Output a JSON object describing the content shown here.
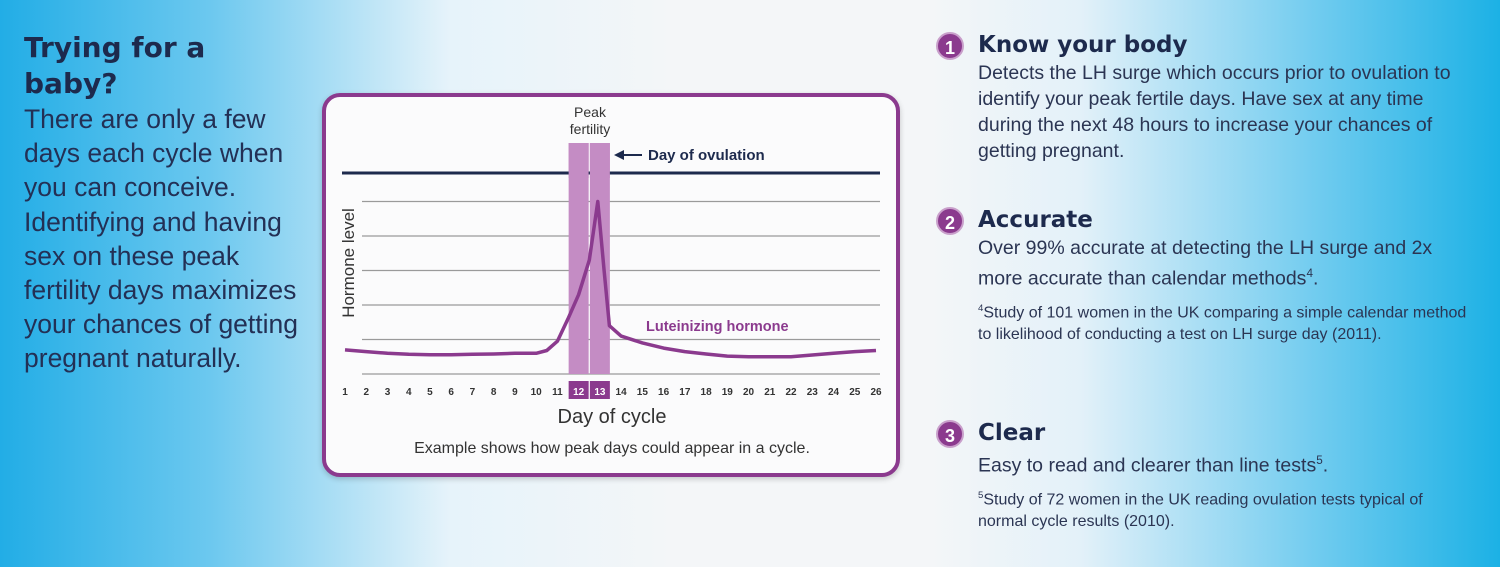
{
  "left": {
    "title": "Trying for a baby?",
    "body": "There are only a few days each cycle when you can conceive. Identifying and having sex on these peak fertility days maximizes your chances of getting pregnant naturally."
  },
  "chart_data": {
    "type": "line",
    "title": "",
    "xlabel": "Day of cycle",
    "ylabel": "Hormone level",
    "x_ticks": [
      "1",
      "2",
      "3",
      "4",
      "5",
      "6",
      "7",
      "8",
      "9",
      "10",
      "11",
      "12",
      "13",
      "14",
      "15",
      "16",
      "17",
      "18",
      "19",
      "20",
      "21",
      "22",
      "23",
      "24",
      "25",
      "26"
    ],
    "highlighted_days": [
      "12",
      "13"
    ],
    "xlim": [
      1,
      26
    ],
    "ylim": [
      0,
      6
    ],
    "grid": true,
    "series": [
      {
        "name": "Luteinizing hormone",
        "color": "#8b3a8e",
        "x": [
          1,
          2,
          3,
          4,
          5,
          6,
          7,
          8,
          9,
          10,
          10.5,
          11,
          11.5,
          12,
          12.5,
          12.9,
          13.2,
          13.45,
          14,
          15,
          16,
          17,
          18,
          19,
          20,
          21,
          22,
          23,
          24,
          25,
          26
        ],
        "y": [
          0.7,
          0.65,
          0.6,
          0.57,
          0.56,
          0.56,
          0.57,
          0.58,
          0.6,
          0.6,
          0.68,
          0.95,
          1.6,
          2.3,
          3.3,
          5.0,
          3.0,
          1.4,
          1.1,
          0.9,
          0.75,
          0.65,
          0.58,
          0.52,
          0.5,
          0.5,
          0.5,
          0.55,
          0.6,
          0.65,
          0.68
        ]
      }
    ],
    "annotations": {
      "peak": "Peak fertility",
      "ovulation": "Day of ovulation"
    },
    "caption": "Example shows how peak days could appear in a cycle."
  },
  "features": [
    {
      "num": "1",
      "title": "Know your body",
      "body": "Detects the LH surge which occurs prior to ovulation to identify your peak fertile days. Have sex at any time during the next 48 hours to increase your chances of getting pregnant."
    },
    {
      "num": "2",
      "title": "Accurate",
      "body": "Over 99% accurate at detecting the LH surge and 2x more accurate than calendar methods",
      "sup": "4",
      "note_sup": "4",
      "note": "Study of 101 women in the UK comparing a simple calendar method to likelihood of conducting a test on LH surge day (2011)."
    },
    {
      "num": "3",
      "title": "Clear",
      "body": "Easy to read and clearer than line tests",
      "sup": "5",
      "note_sup": "5",
      "note": "Study of 72 women in the UK reading ovulation tests typical of normal cycle results (2010)."
    }
  ],
  "colors": {
    "purple": "#8b3a8e",
    "navy": "#1d2a4d",
    "bar": "#c48cc4"
  }
}
